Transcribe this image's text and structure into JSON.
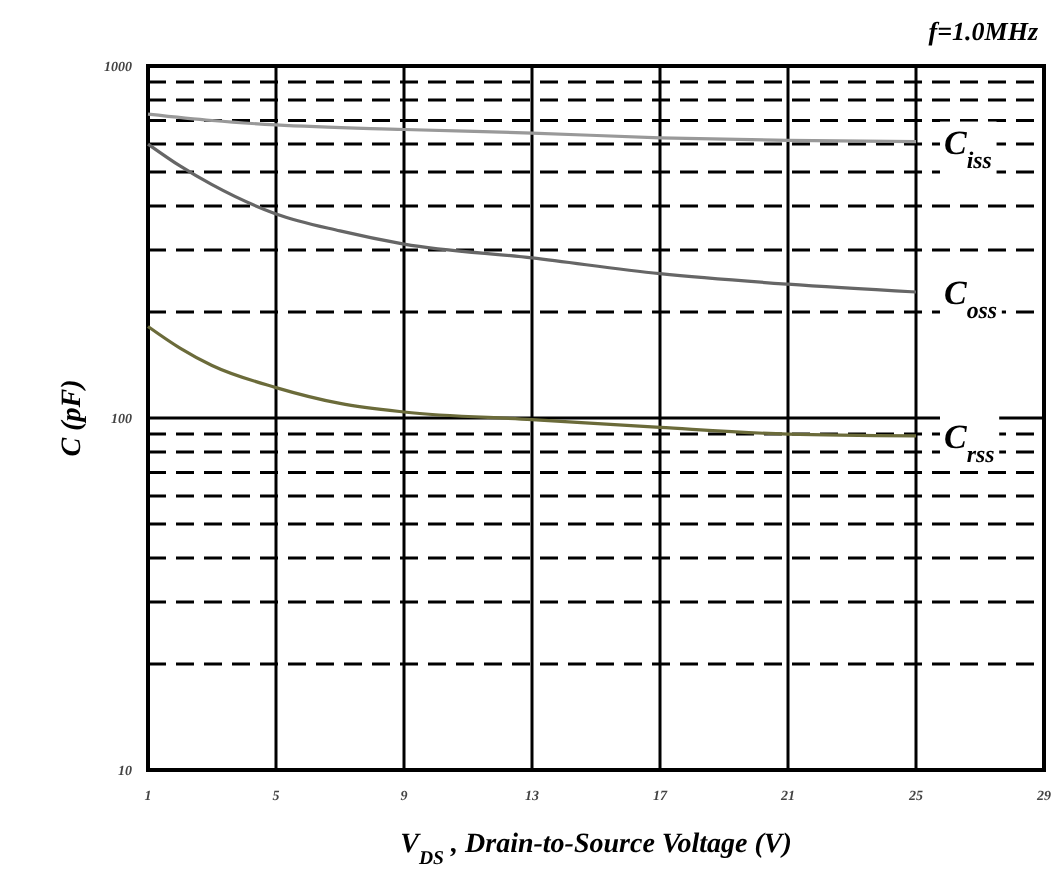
{
  "chart_data": {
    "type": "line",
    "annotations": [
      "f=1.0MHz"
    ],
    "xlabel": "V$_{DS}$ , Drain-to-Source Voltage (V)",
    "ylabel": "C (pF)",
    "log": "y",
    "grid": true,
    "legend": false,
    "marker": "none",
    "line_style": "solid",
    "xlim": [
      1,
      29
    ],
    "xticks": [
      1,
      5,
      9,
      13,
      17,
      21,
      25,
      29
    ],
    "ylim": [
      10,
      1000
    ],
    "yticks": [
      10,
      {
        "value": 20,
        "label": null
      },
      {
        "value": 30,
        "label": null
      },
      {
        "value": 40,
        "label": null
      },
      {
        "value": 50,
        "label": null
      },
      {
        "value": 60,
        "label": null
      },
      {
        "value": 70,
        "label": null
      },
      {
        "value": 80,
        "label": null
      },
      {
        "value": 90,
        "label": null
      },
      100,
      {
        "value": 200,
        "label": null
      },
      {
        "value": 300,
        "label": null
      },
      {
        "value": 400,
        "label": null
      },
      {
        "value": 500,
        "label": null
      },
      {
        "value": 600,
        "label": null
      },
      {
        "value": 700,
        "label": null
      },
      {
        "value": 800,
        "label": null
      },
      {
        "value": 900,
        "label": null
      },
      1000
    ],
    "series": [
      {
        "name": "C$_{iss}$",
        "color": "#999999",
        "x": [
          1,
          3,
          5,
          9,
          13,
          17,
          21,
          25
        ],
        "values": [
          730,
          700,
          680,
          660,
          645,
          625,
          615,
          610
        ]
      },
      {
        "name": "C$_{oss}$",
        "color": "#666666",
        "x": [
          1,
          2,
          3,
          5,
          7,
          9,
          13,
          17,
          21,
          25
        ],
        "values": [
          600,
          520,
          460,
          380,
          340,
          312,
          285,
          257,
          240,
          228
        ]
      },
      {
        "name": "C$_{rss}$",
        "color": "#6b6b3a",
        "x": [
          1,
          2,
          3,
          5,
          7,
          9,
          13,
          17,
          21,
          25
        ],
        "values": [
          182,
          158,
          141,
          122,
          110,
          104,
          99,
          94,
          90,
          89
        ]
      }
    ]
  }
}
